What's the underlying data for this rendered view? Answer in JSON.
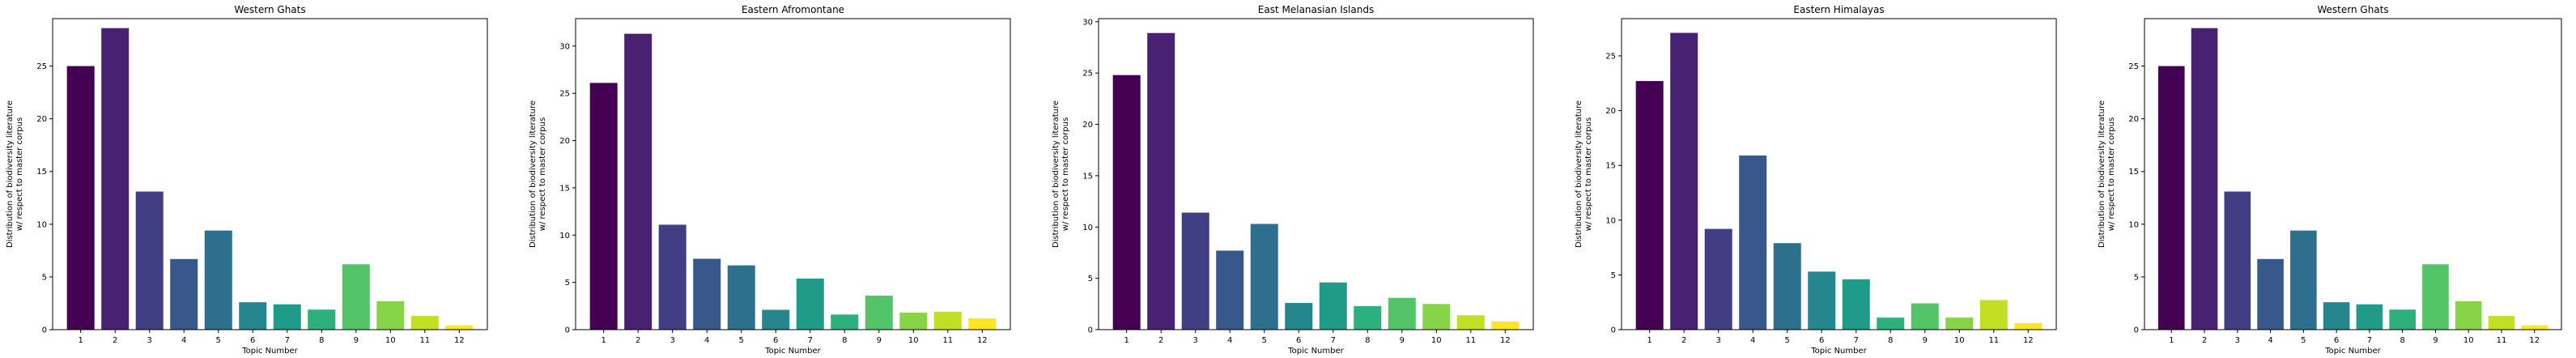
{
  "chart_data": [
    {
      "type": "bar",
      "title": "Western Ghats",
      "xlabel": "Topic Number",
      "ylabel": [
        "Distribution of biodiversity literature",
        "w/ respect to master corpus"
      ],
      "categories": [
        "1",
        "2",
        "3",
        "4",
        "5",
        "6",
        "7",
        "8",
        "9",
        "10",
        "11",
        "12"
      ],
      "values": [
        25.0,
        28.6,
        13.1,
        6.7,
        9.4,
        2.6,
        2.4,
        1.9,
        6.2,
        2.7,
        1.3,
        0.4
      ],
      "ylim": [
        0,
        29.5
      ],
      "yticks": [
        0,
        5,
        10,
        15,
        20,
        25
      ],
      "grid": false,
      "legend": "none"
    },
    {
      "type": "bar",
      "title": "Eastern Afromontane",
      "xlabel": "Topic Number",
      "ylabel": [
        "Distribution of biodiversity literature",
        "w/ respect to master corpus"
      ],
      "categories": [
        "1",
        "2",
        "3",
        "4",
        "5",
        "6",
        "7",
        "8",
        "9",
        "10",
        "11",
        "12"
      ],
      "values": [
        26.1,
        31.3,
        11.1,
        7.5,
        6.8,
        2.1,
        5.4,
        1.6,
        3.6,
        1.8,
        1.9,
        1.2
      ],
      "ylim": [
        0,
        32.9
      ],
      "yticks": [
        0,
        5,
        10,
        15,
        20,
        25,
        30
      ],
      "grid": false,
      "legend": "none"
    },
    {
      "type": "bar",
      "title": "East Melanasian Islands",
      "xlabel": "Topic Number",
      "ylabel": [
        "Distribution of biodiversity literature",
        "w/ respect to master corpus"
      ],
      "categories": [
        "1",
        "2",
        "3",
        "4",
        "5",
        "6",
        "7",
        "8",
        "9",
        "10",
        "11",
        "12"
      ],
      "values": [
        24.8,
        28.9,
        11.4,
        7.7,
        10.3,
        2.6,
        4.6,
        2.3,
        3.1,
        2.5,
        1.4,
        0.8
      ],
      "ylim": [
        0,
        30.3
      ],
      "yticks": [
        0,
        5,
        10,
        15,
        20,
        25,
        30
      ],
      "grid": false,
      "legend": "none"
    },
    {
      "type": "bar",
      "title": "Eastern Himalayas",
      "xlabel": "Topic Number",
      "ylabel": [
        "Distribution of biodiversity literature",
        "w/ respect to master corpus"
      ],
      "categories": [
        "1",
        "2",
        "3",
        "4",
        "5",
        "6",
        "7",
        "8",
        "9",
        "10",
        "11",
        "12"
      ],
      "values": [
        22.7,
        27.1,
        9.2,
        15.9,
        7.9,
        5.3,
        4.6,
        1.1,
        2.4,
        1.1,
        2.7,
        0.6
      ],
      "ylim": [
        0,
        28.4
      ],
      "yticks": [
        0,
        5,
        10,
        15,
        20,
        25
      ],
      "grid": false,
      "legend": "none"
    },
    {
      "type": "bar",
      "title": "Western Ghats",
      "xlabel": "Topic Number",
      "ylabel": [
        "Distribution of biodiversity literature",
        "w/ respect to master corpus"
      ],
      "categories": [
        "1",
        "2",
        "3",
        "4",
        "5",
        "6",
        "7",
        "8",
        "9",
        "10",
        "11",
        "12"
      ],
      "values": [
        25.0,
        28.6,
        13.1,
        6.7,
        9.4,
        2.6,
        2.4,
        1.9,
        6.2,
        2.7,
        1.3,
        0.4
      ],
      "ylim": [
        0,
        29.5
      ],
      "yticks": [
        0,
        5,
        10,
        15,
        20,
        25
      ],
      "grid": false,
      "legend": "none"
    }
  ],
  "colors": [
    "#440154",
    "#482475",
    "#414487",
    "#355f8d",
    "#2a788e",
    "#21908d",
    "#22a884",
    "#42be71",
    "#7ad151",
    "#bddf26",
    "#fde725"
  ],
  "bar_colors": [
    "#440154",
    "#481d6f",
    "#453781",
    "#3e4c8a",
    "#355f8d",
    "#2d718e",
    "#26828e",
    "#1f938b",
    "#24a584",
    "#45b774",
    "#7ad151",
    "#bddf26",
    "#fde725"
  ]
}
